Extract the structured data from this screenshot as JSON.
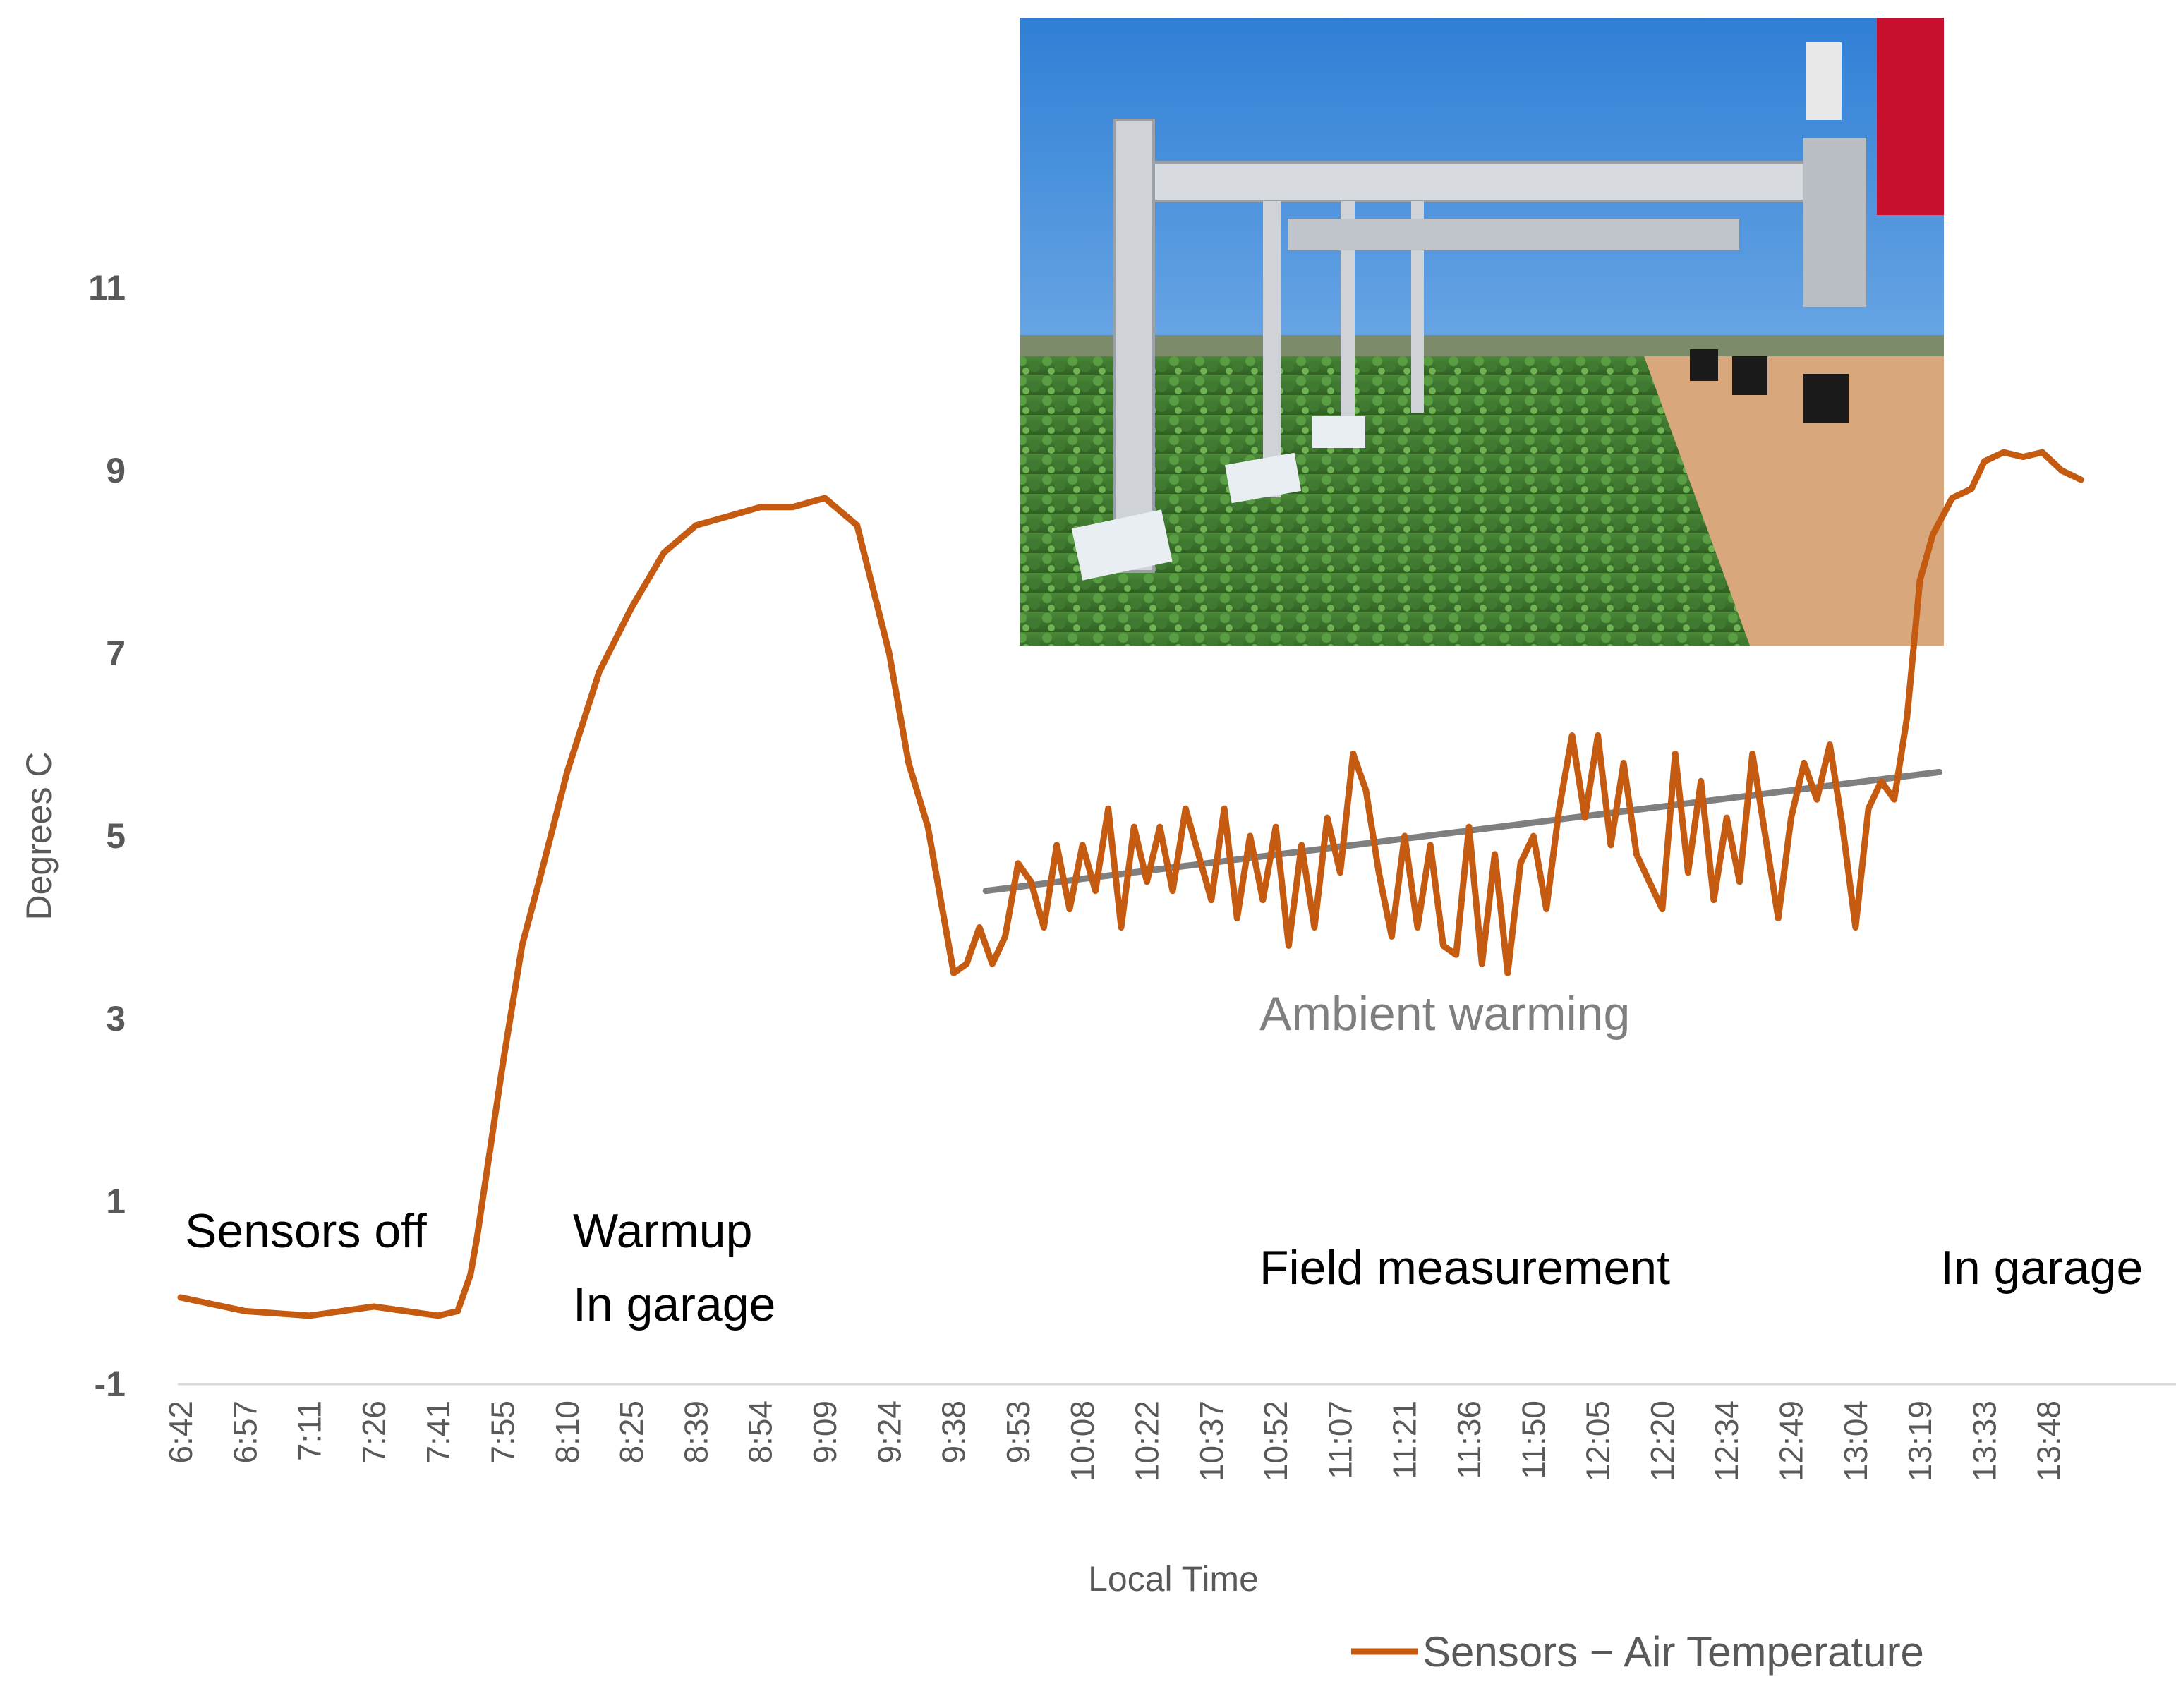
{
  "chart_data": {
    "type": "line",
    "title": "",
    "xlabel": "Local Time",
    "ylabel": "Degrees C",
    "ylim": [
      -1,
      11
    ],
    "yticks": [
      "11",
      "9",
      "7",
      "5",
      "3",
      "1",
      "-1"
    ],
    "categories": [
      "6:42",
      "6:57",
      "7:11",
      "7:26",
      "7:41",
      "7:55",
      "8:10",
      "8:25",
      "8:39",
      "8:54",
      "9:09",
      "9:24",
      "9:38",
      "9:53",
      "10:08",
      "10:22",
      "10:37",
      "10:52",
      "11:07",
      "11:21",
      "11:36",
      "11:50",
      "12:05",
      "12:20",
      "12:34",
      "12:49",
      "13:04",
      "13:19",
      "13:33",
      "13:48"
    ],
    "legend": {
      "position": "bottom-right"
    },
    "grid": false,
    "series": [
      {
        "name": "Sensors − Air Temperature",
        "color": "#c55a11",
        "x": [
          0,
          1,
          2,
          3,
          4,
          4.3,
          4.5,
          4.6,
          5.0,
          5.3,
          5.6,
          6.0,
          6.5,
          7.0,
          7.5,
          8.0,
          8.5,
          9.0,
          9.5,
          10.0,
          10.5,
          11.0,
          11.3,
          11.6,
          11.8,
          12.0,
          12.2,
          12.4,
          12.6,
          12.8,
          13.0,
          13.2,
          13.4,
          13.6,
          13.8,
          14.0,
          14.2,
          14.4,
          14.6,
          14.8,
          15.0,
          15.2,
          15.4,
          15.6,
          15.8,
          16.0,
          16.2,
          16.4,
          16.6,
          16.8,
          17.0,
          17.2,
          17.4,
          17.6,
          17.8,
          18.0,
          18.2,
          18.4,
          18.6,
          18.8,
          19.0,
          19.2,
          19.4,
          19.6,
          19.8,
          20.0,
          20.2,
          20.4,
          20.6,
          20.8,
          21.0,
          21.2,
          21.4,
          21.6,
          21.8,
          22.0,
          22.2,
          22.4,
          22.6,
          22.8,
          23.0,
          23.2,
          23.4,
          23.6,
          23.8,
          24.0,
          24.2,
          24.4,
          24.6,
          24.8,
          25.0,
          25.2,
          25.4,
          25.6,
          25.8,
          26.0,
          26.2,
          26.4,
          26.6,
          26.8,
          27.0,
          27.2,
          27.5,
          27.8,
          28.0,
          28.3,
          28.6,
          28.9,
          29.2,
          29.5
        ],
        "values": [
          -0.05,
          -0.2,
          -0.25,
          -0.15,
          -0.25,
          -0.2,
          0.2,
          0.6,
          2.5,
          3.8,
          4.6,
          5.7,
          6.8,
          7.5,
          8.1,
          8.4,
          8.5,
          8.6,
          8.6,
          8.7,
          8.4,
          7.0,
          5.8,
          5.1,
          4.3,
          3.5,
          3.6,
          4.0,
          3.6,
          3.9,
          4.7,
          4.5,
          4.0,
          4.9,
          4.2,
          4.9,
          4.4,
          5.3,
          4.0,
          5.1,
          4.5,
          5.1,
          4.4,
          5.3,
          4.8,
          4.3,
          5.3,
          4.1,
          5.0,
          4.3,
          5.1,
          3.8,
          4.9,
          4.0,
          5.2,
          4.6,
          5.9,
          5.5,
          4.6,
          3.9,
          5.0,
          4.0,
          4.9,
          3.8,
          3.7,
          5.1,
          3.6,
          4.8,
          3.5,
          4.7,
          5.0,
          4.2,
          5.3,
          6.1,
          5.2,
          6.1,
          4.9,
          5.8,
          4.8,
          4.5,
          4.2,
          5.9,
          4.6,
          5.6,
          4.3,
          5.2,
          4.5,
          5.9,
          5.0,
          4.1,
          5.2,
          5.8,
          5.4,
          6.0,
          5.1,
          4.0,
          5.3,
          5.6,
          5.4,
          6.3,
          7.8,
          8.3,
          8.7,
          8.8,
          9.1,
          9.2,
          9.15,
          9.2,
          9.0,
          8.9
        ]
      }
    ],
    "trendline": {
      "color": "#7f7f7f",
      "x": [
        12.5,
        27.3
      ],
      "values": [
        4.4,
        5.7
      ]
    }
  },
  "annotations": {
    "sensors_off": "Sensors off",
    "warmup_line1": "Warmup",
    "warmup_line2": "In garage",
    "ambient_warming": "Ambient warming",
    "field_measurement": "Field measurement",
    "in_garage_end": "In garage"
  },
  "inset_photo": {
    "description_icon": "field-robot-photo-icon"
  }
}
